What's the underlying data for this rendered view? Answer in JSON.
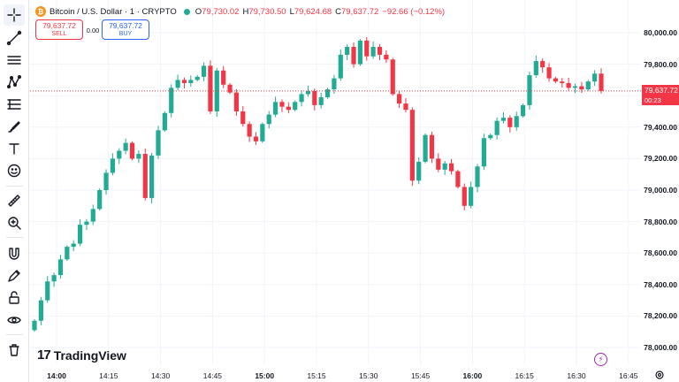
{
  "legend": {
    "logo_letter": "₿",
    "symbol": "Bitcoin / U.S. Dollar · 1 · CRYPTO",
    "open_label": "O",
    "open": "79,730.02",
    "high_label": "H",
    "high": "79,730.50",
    "low_label": "L",
    "low": "79,624.68",
    "close_label": "C",
    "close": "79,637.72",
    "change": "−92.66 (−0.12%)"
  },
  "trade": {
    "sell_price": "79,637.72",
    "sell_label": "SELL",
    "spread": "0.00",
    "buy_price": "79,637.72",
    "buy_label": "BUY"
  },
  "price_axis": [
    "80,000.00",
    "79,800.00",
    "79,600.00",
    "79,400.00",
    "79,200.00",
    "79,000.00",
    "78,800.00",
    "78,600.00",
    "78,400.00",
    "78,200.00",
    "78,000.00"
  ],
  "last_price": {
    "price": "79,637.72",
    "countdown": "00:23"
  },
  "time_axis": [
    {
      "label": "14:00",
      "bold": true
    },
    {
      "label": "14:15",
      "bold": false
    },
    {
      "label": "14:30",
      "bold": false
    },
    {
      "label": "14:45",
      "bold": false
    },
    {
      "label": "15:00",
      "bold": true
    },
    {
      "label": "15:15",
      "bold": false
    },
    {
      "label": "15:30",
      "bold": false
    },
    {
      "label": "15:45",
      "bold": false
    },
    {
      "label": "16:00",
      "bold": true
    },
    {
      "label": "16:15",
      "bold": false
    },
    {
      "label": "16:30",
      "bold": false
    },
    {
      "label": "16:45",
      "bold": false
    }
  ],
  "branding": {
    "name": "TradingView",
    "mark": "17"
  },
  "colors": {
    "up": "#22ab94",
    "down": "#f23645",
    "grid": "#f0f3fa",
    "accent": "#2962ff"
  },
  "toolbar_icons": [
    "crosshair-icon",
    "trend-line-icon",
    "horizontal-lines-icon",
    "pattern-icon",
    "fib-icon",
    "brush-icon",
    "text-icon",
    "emoji-icon",
    "ruler-icon",
    "zoom-in-icon",
    "magnet-icon",
    "lock-icon",
    "eye-icon",
    "trash-icon"
  ],
  "chart_data": {
    "type": "candlestick",
    "ylim": [
      78000,
      80000
    ],
    "series": [
      {
        "closes": [
          78170,
          78300,
          78420,
          78460,
          78560,
          78640,
          78660,
          78780,
          78800,
          78880,
          79000,
          79110,
          79200,
          79250,
          79300,
          79200,
          79230,
          78950,
          79220,
          79380,
          79490,
          79650,
          79700,
          79680,
          79700,
          79720,
          79790,
          79500,
          79760,
          79670,
          79620,
          79500,
          79420,
          79340,
          79310,
          79420,
          79480,
          79560,
          79530,
          79510,
          79560,
          79610,
          79630,
          79540,
          79590,
          79640,
          79710,
          79860,
          79910,
          79800,
          79950,
          79850,
          79910,
          79860,
          79830,
          79610,
          79550,
          79510,
          79060,
          79180,
          79350,
          79200,
          79130,
          79170,
          79120,
          79020,
          78900,
          79020,
          79150,
          79330,
          79350,
          79440,
          79460,
          79400,
          79470,
          79540,
          79730,
          79820,
          79780,
          79710,
          79690,
          79680,
          79650,
          79660,
          79640,
          79690,
          79740,
          79630
        ]
      }
    ]
  }
}
